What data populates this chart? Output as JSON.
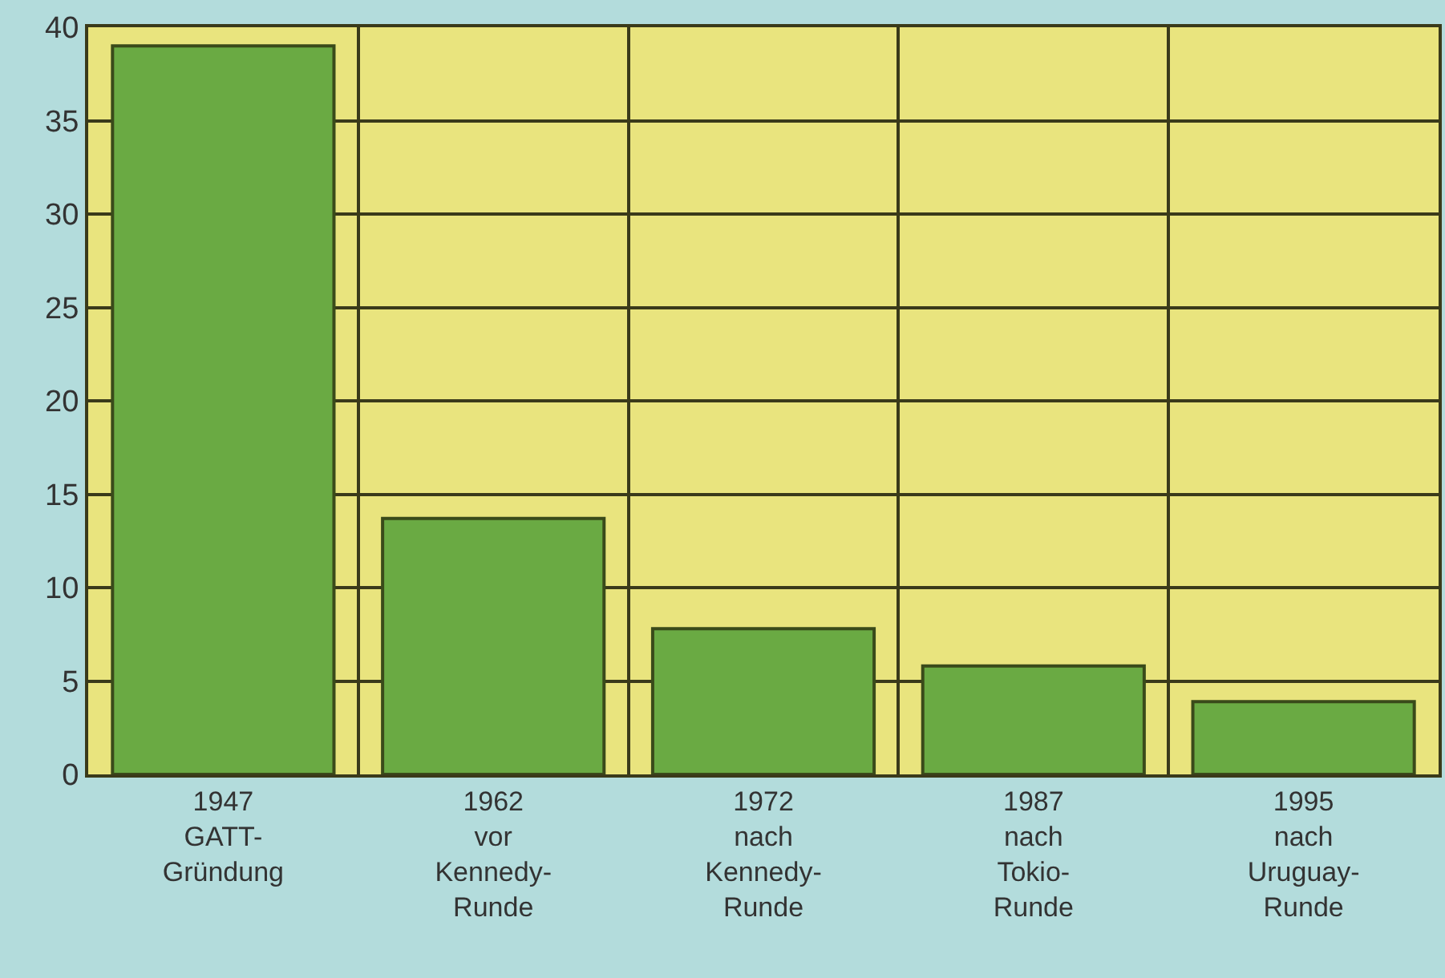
{
  "chart_data": {
    "type": "bar",
    "categories": [
      "1947\nGATT-\nGründung",
      "1962\nvor\nKennedy-\nRunde",
      "1972\nnach\nKennedy-\nRunde",
      "1987\nnach\nTokio-\nRunde",
      "1995\nnach\nUruguay-\nRunde"
    ],
    "values": [
      39,
      13.7,
      7.8,
      5.8,
      3.9
    ],
    "color": "#6aaa43",
    "ylim": [
      0,
      40
    ],
    "yticks": [
      0,
      5,
      10,
      15,
      20,
      25,
      30,
      35,
      40
    ],
    "grid": true
  }
}
